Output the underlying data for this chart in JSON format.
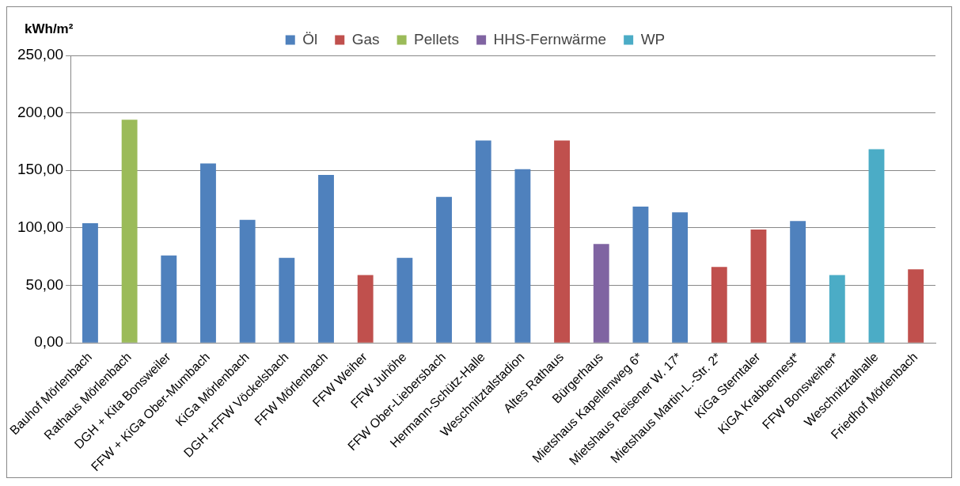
{
  "chart_data": {
    "type": "bar",
    "ylabel": "kWh/m²",
    "categories": [
      "Bauhof Mörlenbach",
      "Rathaus Mörlenbach",
      "DGH + Kita Bonsweiler",
      "FFW + KiGa Ober-Mumbach",
      "KiGa Mörlenbach",
      "DGH +FFW Vöckelsbach",
      "FFW Mörlenbach",
      "FFW Weiher",
      "FFW Juhöhe",
      "FFW Ober-Liebersbach",
      "Hermann-Schütz-Halle",
      "Weschnitztalstadion",
      "Altes Rathaus",
      "Bürgerhaus",
      "Mietshaus Kapellenweg 6*",
      "Mietshaus Reisener W. 17*",
      "Mietshaus Martin-L.-Str. 2*",
      "KiGa Sterntaler",
      "KiGA Krabbennest*",
      "FFW Bonsweiher*",
      "Weschnitztalhalle",
      "Friedhof Mörlenbach"
    ],
    "series": [
      {
        "name": "Öl",
        "color": "#4f81bd",
        "values": [
          104,
          null,
          76,
          156,
          107,
          74,
          146,
          null,
          74,
          127,
          176,
          151,
          null,
          null,
          118.5,
          113.5,
          null,
          null,
          106,
          null,
          null,
          null
        ]
      },
      {
        "name": "Gas",
        "color": "#c0504d",
        "values": [
          null,
          null,
          null,
          null,
          null,
          null,
          null,
          59,
          null,
          null,
          null,
          null,
          176,
          null,
          null,
          null,
          66,
          98.5,
          null,
          null,
          null,
          64
        ]
      },
      {
        "name": "Pellets",
        "color": "#9bbb59",
        "values": [
          null,
          194,
          null,
          null,
          null,
          null,
          null,
          null,
          null,
          null,
          null,
          null,
          null,
          null,
          null,
          null,
          null,
          null,
          null,
          null,
          null,
          null
        ]
      },
      {
        "name": "HHS-Fernwärme",
        "color": "#8064a2",
        "values": [
          null,
          null,
          null,
          null,
          null,
          null,
          null,
          null,
          null,
          null,
          null,
          null,
          null,
          86,
          null,
          null,
          null,
          null,
          null,
          null,
          null,
          null
        ]
      },
      {
        "name": "WP",
        "color": "#4bacc6",
        "values": [
          null,
          null,
          null,
          null,
          null,
          null,
          null,
          null,
          null,
          null,
          null,
          null,
          null,
          null,
          null,
          null,
          null,
          null,
          null,
          59,
          168.5,
          null
        ]
      }
    ],
    "ylim": [
      0,
      250
    ],
    "yticks": [
      {
        "value": 0,
        "label": "0,00"
      },
      {
        "value": 50,
        "label": "50,00"
      },
      {
        "value": 100,
        "label": "100,00"
      },
      {
        "value": 150,
        "label": "150,00"
      },
      {
        "value": 200,
        "label": "200,00"
      },
      {
        "value": 250,
        "label": "250,00"
      }
    ],
    "grid": "y",
    "legend": "top"
  }
}
